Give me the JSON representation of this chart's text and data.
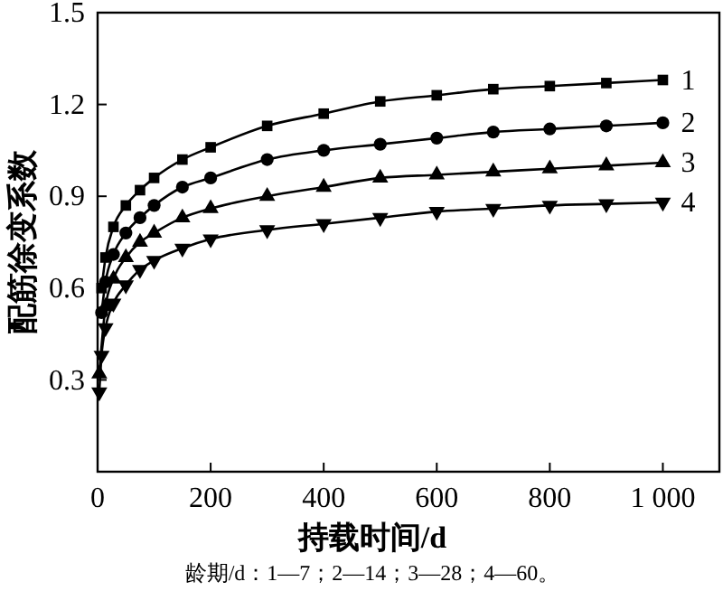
{
  "chart_data": {
    "type": "line",
    "xlabel": "持载时间/d",
    "ylabel": "配筋徐变系数",
    "x": [
      3,
      7,
      14,
      28,
      50,
      75,
      100,
      150,
      200,
      300,
      400,
      500,
      600,
      700,
      800,
      900,
      1000
    ],
    "series": [
      {
        "name": "1",
        "color": "#000000",
        "marker": "square",
        "values": [
          null,
          0.6,
          0.7,
          0.8,
          0.87,
          0.92,
          0.96,
          1.02,
          1.06,
          1.13,
          1.17,
          1.21,
          1.23,
          1.25,
          1.26,
          1.27,
          1.28
        ]
      },
      {
        "name": "2",
        "color": "#000000",
        "marker": "circle",
        "values": [
          null,
          0.52,
          0.62,
          0.71,
          0.78,
          0.83,
          0.87,
          0.93,
          0.96,
          1.02,
          1.05,
          1.07,
          1.09,
          1.11,
          1.12,
          1.13,
          1.14
        ]
      },
      {
        "name": "3",
        "color": "#000000",
        "marker": "triangle",
        "values": [
          0.32,
          null,
          0.54,
          0.63,
          0.7,
          0.75,
          0.78,
          0.83,
          0.86,
          0.9,
          0.93,
          0.96,
          0.97,
          0.98,
          0.99,
          1.0,
          1.01
        ]
      },
      {
        "name": "4",
        "color": "#000000",
        "marker": "triangle-down",
        "values": [
          0.26,
          0.38,
          0.47,
          0.55,
          0.61,
          0.66,
          0.69,
          0.73,
          0.76,
          0.79,
          0.81,
          0.83,
          0.85,
          0.86,
          0.87,
          0.875,
          0.88
        ]
      }
    ],
    "xlim": [
      0,
      1100
    ],
    "xticks": [
      0,
      200,
      400,
      600,
      800,
      {
        "value": 1000,
        "label": "1 000"
      }
    ],
    "ylim": [
      0,
      1.5
    ],
    "yticks": [
      0.3,
      0.6,
      0.9,
      1.2,
      1.5
    ],
    "grid": false,
    "legend": false,
    "line_style": "solid",
    "annotations": [
      "龄期/d：1—7；2—14；3—28；4—60。"
    ]
  }
}
